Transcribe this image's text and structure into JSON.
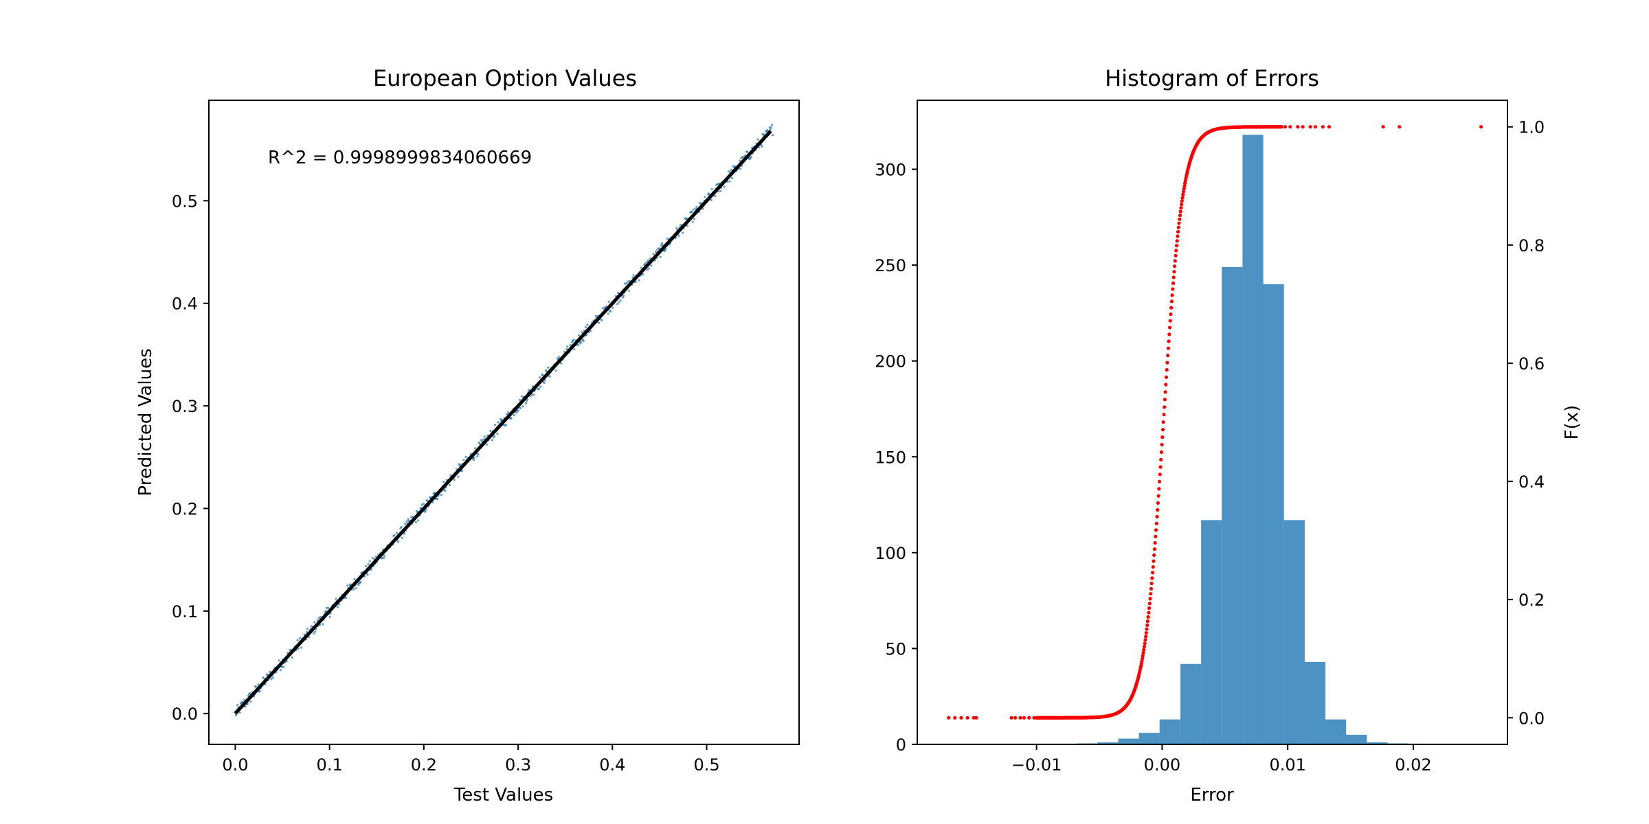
{
  "chart_data": [
    {
      "type": "scatter",
      "title": "European Option Values",
      "xlabel": "Test Values",
      "ylabel": "Predicted Values",
      "annotation": "R^2 = 0.9998999834060669",
      "xlim": [
        -0.028,
        0.598
      ],
      "ylim": [
        -0.03,
        0.598
      ],
      "xticks": [
        0.0,
        0.1,
        0.2,
        0.3,
        0.4,
        0.5
      ],
      "yticks": [
        0.0,
        0.1,
        0.2,
        0.3,
        0.4,
        0.5
      ],
      "xtick_labels": [
        "0.0",
        "0.1",
        "0.2",
        "0.3",
        "0.4",
        "0.5"
      ],
      "ytick_labels": [
        "0.0",
        "0.1",
        "0.2",
        "0.3",
        "0.4",
        "0.5"
      ],
      "series": [
        {
          "kind": "scatter",
          "color": "#1f77b4",
          "x_range": [
            0.0,
            0.57
          ],
          "relation": "y ≈ x",
          "marker_size": "small"
        },
        {
          "kind": "line",
          "color": "#000000",
          "x": [
            0.0,
            0.568
          ],
          "y": [
            0.0,
            0.568
          ]
        }
      ],
      "grid": false,
      "legend": "none"
    },
    {
      "type": "bar",
      "title": "Histogram of Errors",
      "xlabel": "Error",
      "ylabel": "",
      "ylabel_right": "F(x)",
      "xlim": [
        -0.0195,
        0.0275
      ],
      "ylim": [
        0,
        336
      ],
      "ylim_right": [
        -0.045,
        1.045
      ],
      "xticks": [
        -0.01,
        0.0,
        0.01,
        0.02
      ],
      "xtick_labels": [
        "−0.01",
        "0.00",
        "0.01",
        "0.02"
      ],
      "yticks": [
        0,
        50,
        100,
        150,
        200,
        250,
        300
      ],
      "ytick_labels": [
        "0",
        "50",
        "100",
        "150",
        "200",
        "250",
        "300"
      ],
      "yticks_right": [
        0.0,
        0.2,
        0.4,
        0.6,
        0.8,
        1.0
      ],
      "ytick_labels_right": [
        "0.0",
        "0.2",
        "0.4",
        "0.6",
        "0.8",
        "1.0"
      ],
      "bin_width": 0.00165,
      "bin_edges_start": -0.0068,
      "counts": [
        0.5,
        1,
        3,
        6,
        13,
        42,
        117,
        249,
        318,
        240,
        117,
        43,
        13,
        5,
        1,
        0.5
      ],
      "bar_color": "#1f77b4",
      "cdf": {
        "color": "#ff0000",
        "mean": 0.0001,
        "std": 0.0013,
        "outliers_low": [
          -0.017,
          -0.0165,
          -0.016,
          -0.0155,
          -0.015,
          -0.0148,
          -0.012,
          -0.0117,
          -0.0113,
          -0.011,
          -0.0106,
          -0.0102
        ],
        "outliers_high": [
          0.0095,
          0.0098,
          0.0102,
          0.0108,
          0.0112,
          0.0118,
          0.0122,
          0.0128,
          0.0133,
          0.0176,
          0.0189,
          0.0254
        ]
      },
      "grid": false,
      "legend": "none"
    }
  ]
}
